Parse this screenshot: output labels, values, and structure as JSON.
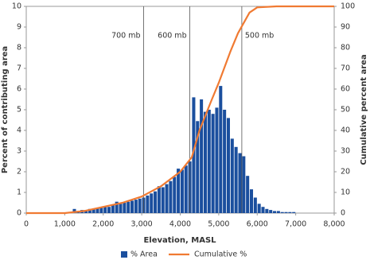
{
  "chart_data": {
    "type": "histogram",
    "x_label": "Elevation, MASL",
    "y_label": "Percent of contributing area",
    "y2_label": "Cumulative percent area",
    "bins": [
      1100,
      1200,
      1300,
      1400,
      1500,
      1600,
      1700,
      1800,
      1900,
      2000,
      2100,
      2200,
      2300,
      2400,
      2500,
      2600,
      2700,
      2800,
      2900,
      3000,
      3100,
      3200,
      3300,
      3400,
      3500,
      3600,
      3700,
      3800,
      3900,
      4000,
      4100,
      4200,
      4300,
      4400,
      4500,
      4600,
      4700,
      4800,
      4900,
      5000,
      5100,
      5200,
      5300,
      5400,
      5500,
      5600,
      5700,
      5800,
      5900,
      6000,
      6100,
      6200,
      6300,
      6400,
      6500,
      6600,
      6700,
      6800,
      6900,
      7000
    ],
    "series": [
      {
        "name": "% Area",
        "color": "#1b4f9e",
        "values": [
          0.05,
          0.2,
          0.1,
          0.15,
          0.15,
          0.2,
          0.2,
          0.25,
          0.25,
          0.3,
          0.3,
          0.4,
          0.55,
          0.45,
          0.5,
          0.55,
          0.6,
          0.65,
          0.7,
          0.75,
          0.85,
          0.95,
          1.05,
          1.3,
          1.25,
          1.4,
          1.55,
          1.75,
          2.15,
          2.1,
          2.3,
          2.5,
          5.6,
          4.45,
          5.5,
          4.9,
          5.0,
          4.8,
          5.1,
          6.15,
          5.0,
          4.6,
          3.6,
          3.2,
          2.9,
          2.75,
          1.8,
          1.15,
          0.75,
          0.45,
          0.3,
          0.2,
          0.15,
          0.1,
          0.1,
          0.05,
          0.05,
          0.05,
          0.05
        ]
      },
      {
        "name": "Cumulative %",
        "color": "#f07a32",
        "axis": "y2",
        "x": [
          0,
          1000,
          1500,
          2000,
          2500,
          3000,
          3500,
          4000,
          4300,
          4500,
          4800,
          5000,
          5300,
          5500,
          5800,
          6000,
          6500,
          8000
        ],
        "values": [
          0,
          0,
          1,
          3,
          5,
          8,
          13,
          20,
          27,
          40,
          54,
          63,
          78,
          87,
          97,
          99.5,
          100,
          100
        ]
      }
    ],
    "annotations": [
      {
        "text": "700 mb",
        "x": 3050
      },
      {
        "text": "600 mb",
        "x": 4250
      },
      {
        "text": "500 mb",
        "x": 5600
      }
    ],
    "xlim": [
      0,
      8000
    ],
    "xticks": [
      0,
      {
        "value": 1000,
        "label": "1,000"
      },
      {
        "value": 2000,
        "label": "2,000"
      },
      {
        "value": 3000,
        "label": "3,000"
      },
      {
        "value": 4000,
        "label": "4,000"
      },
      {
        "value": 5000,
        "label": "5,000"
      },
      {
        "value": 6000,
        "label": "6,000"
      },
      {
        "value": 7000,
        "label": "7,000"
      },
      {
        "value": 8000,
        "label": "8,000"
      }
    ],
    "ylim": [
      0,
      10
    ],
    "yticks": [
      0,
      1,
      2,
      3,
      4,
      5,
      6,
      7,
      8,
      9,
      10
    ],
    "y2lim": [
      0,
      100
    ],
    "y2ticks": [
      0,
      10,
      20,
      30,
      40,
      50,
      60,
      70,
      80,
      90,
      100
    ]
  }
}
